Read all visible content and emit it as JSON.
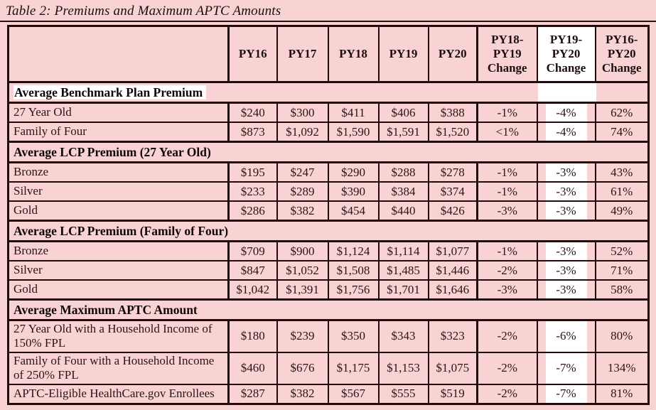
{
  "page": {
    "title": "Table 2: Premiums and Maximum APTC Amounts"
  },
  "colors": {
    "page_background": "#f9d3d3",
    "highlight": "#ffffff",
    "border": "#200a0a",
    "text": "#2b1414"
  },
  "table": {
    "columns": [
      "",
      "PY16",
      "PY17",
      "PY18",
      "PY19",
      "PY20",
      "PY18-\nPY19\nChange",
      "PY19-\nPY20\nChange",
      "PY16-\nPY20\nChange"
    ],
    "highlighted_column": "PY19-PY20 Change",
    "sections": [
      {
        "header": "Average Benchmark Plan Premium",
        "highlighted": true,
        "rows": [
          {
            "label": "27 Year Old",
            "values": [
              "$240",
              "$300",
              "$411",
              "$406",
              "$388",
              "-1%",
              "-4%",
              "62%"
            ]
          },
          {
            "label": "Family of Four",
            "values": [
              "$873",
              "$1,092",
              "$1,590",
              "$1,591",
              "$1,520",
              "<1%",
              "-4%",
              "74%"
            ]
          }
        ]
      },
      {
        "header": "Average LCP Premium (27 Year Old)",
        "highlighted": false,
        "rows": [
          {
            "label": "Bronze",
            "values": [
              "$195",
              "$247",
              "$290",
              "$288",
              "$278",
              "-1%",
              "-3%",
              "43%"
            ]
          },
          {
            "label": "Silver",
            "values": [
              "$233",
              "$289",
              "$390",
              "$384",
              "$374",
              "-1%",
              "-3%",
              "61%"
            ]
          },
          {
            "label": "Gold",
            "values": [
              "$286",
              "$382",
              "$454",
              "$440",
              "$426",
              "-3%",
              "-3%",
              "49%"
            ]
          }
        ]
      },
      {
        "header": "Average LCP Premium (Family of Four)",
        "highlighted": false,
        "rows": [
          {
            "label": "Bronze",
            "values": [
              "$709",
              "$900",
              "$1,124",
              "$1,114",
              "$1,077",
              "-1%",
              "-3%",
              "52%"
            ]
          },
          {
            "label": "Silver",
            "values": [
              "$847",
              "$1,052",
              "$1,508",
              "$1,485",
              "$1,446",
              "-2%",
              "-3%",
              "71%"
            ]
          },
          {
            "label": "Gold",
            "values": [
              "$1,042",
              "$1,391",
              "$1,756",
              "$1,701",
              "$1,646",
              "-3%",
              "-3%",
              "58%"
            ]
          }
        ]
      },
      {
        "header": "Average Maximum APTC Amount",
        "highlighted": false,
        "rows": [
          {
            "label": "27 Year Old with a Household Income of 150% FPL",
            "values": [
              "$180",
              "$239",
              "$350",
              "$343",
              "$323",
              "-2%",
              "-6%",
              "80%"
            ]
          },
          {
            "label": "Family of Four with a Household Income of 250% FPL",
            "values": [
              "$460",
              "$676",
              "$1,175",
              "$1,153",
              "$1,075",
              "-2%",
              "-7%",
              "134%"
            ]
          },
          {
            "label": "APTC-Eligible HealthCare.gov Enrollees",
            "values": [
              "$287",
              "$382",
              "$567",
              "$555",
              "$519",
              "-2%",
              "-7%",
              "81%"
            ]
          }
        ]
      }
    ]
  }
}
